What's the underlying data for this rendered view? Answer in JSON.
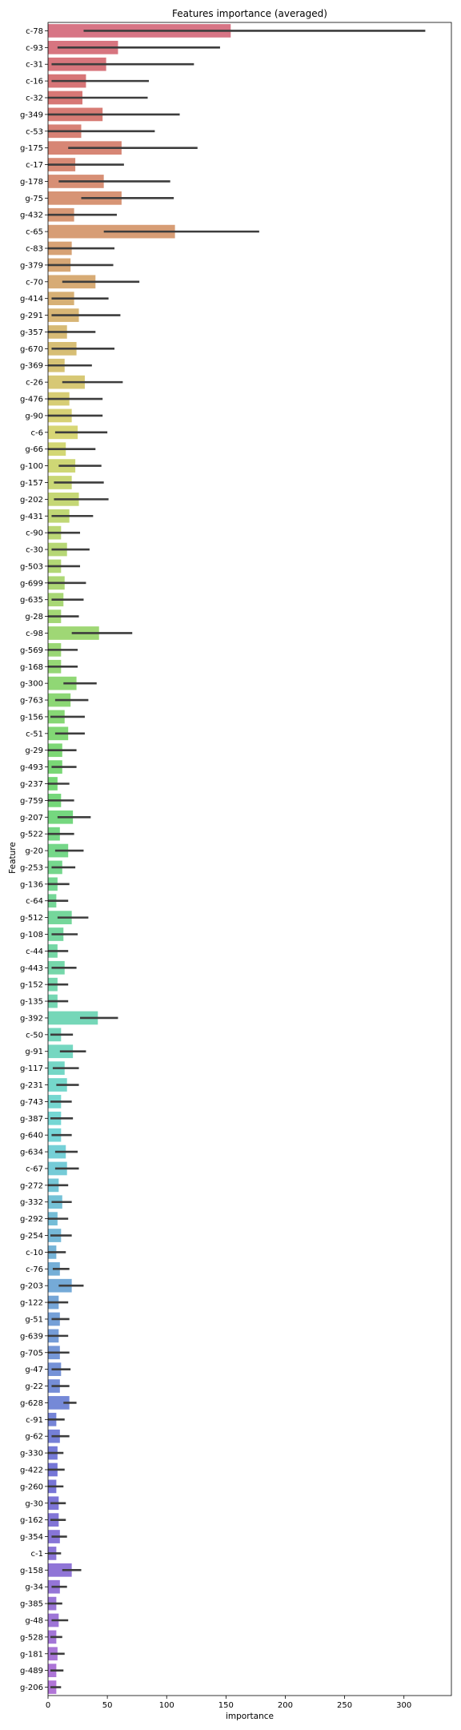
{
  "chart_data": {
    "type": "bar",
    "orientation": "horizontal",
    "title": "Features importance (averaged)",
    "xlabel": "importance",
    "ylabel": "Feature",
    "xlim": [
      0,
      340
    ],
    "xticks": [
      0,
      50,
      100,
      150,
      200,
      250,
      300
    ],
    "grid": false,
    "legend": "none",
    "error_bars": true,
    "categories": [
      "c-78",
      "c-93",
      "c-31",
      "c-16",
      "c-32",
      "g-349",
      "c-53",
      "g-175",
      "c-17",
      "g-178",
      "g-75",
      "g-432",
      "c-65",
      "c-83",
      "g-379",
      "c-70",
      "g-414",
      "g-291",
      "g-357",
      "g-670",
      "g-369",
      "c-26",
      "g-476",
      "g-90",
      "c-6",
      "g-66",
      "g-100",
      "g-157",
      "g-202",
      "g-431",
      "c-90",
      "c-30",
      "g-503",
      "g-699",
      "g-635",
      "g-28",
      "c-98",
      "g-569",
      "g-168",
      "g-300",
      "g-763",
      "g-156",
      "c-51",
      "g-29",
      "g-493",
      "g-237",
      "g-759",
      "g-207",
      "g-522",
      "g-20",
      "g-253",
      "g-136",
      "c-64",
      "g-512",
      "g-108",
      "c-44",
      "g-443",
      "g-152",
      "g-135",
      "g-392",
      "c-50",
      "g-91",
      "g-117",
      "g-231",
      "g-743",
      "g-387",
      "g-640",
      "g-634",
      "c-67",
      "g-272",
      "g-332",
      "g-292",
      "g-254",
      "c-10",
      "c-76",
      "g-203",
      "g-122",
      "g-51",
      "g-639",
      "g-705",
      "g-47",
      "g-22",
      "g-628",
      "c-91",
      "g-62",
      "g-330",
      "g-422",
      "g-260",
      "g-30",
      "g-162",
      "g-354",
      "c-1",
      "g-158",
      "g-34",
      "g-385",
      "g-48",
      "g-528",
      "g-181",
      "g-489",
      "g-206"
    ],
    "values": [
      154,
      59,
      49,
      32,
      29,
      46,
      28,
      62,
      23,
      47,
      62,
      22,
      107,
      20,
      19,
      40,
      22,
      26,
      16,
      24,
      14,
      31,
      18,
      20,
      25,
      15,
      23,
      20,
      26,
      18,
      11,
      16,
      11,
      14,
      13,
      11,
      43,
      11,
      11,
      24,
      19,
      14,
      17,
      12,
      12,
      8,
      11,
      21,
      10,
      17,
      12,
      8,
      7,
      20,
      13,
      8,
      14,
      8,
      8,
      42,
      11,
      21,
      14,
      16,
      11,
      11,
      11,
      15,
      16,
      9,
      12,
      8,
      11,
      7,
      10,
      20,
      9,
      10,
      9,
      10,
      11,
      10,
      18,
      7,
      10,
      8,
      8,
      7,
      9,
      9,
      10,
      7,
      20,
      10,
      7,
      9,
      7,
      8,
      7,
      7
    ],
    "error_low": [
      30,
      8,
      3,
      3,
      0,
      0,
      0,
      17,
      0,
      9,
      28,
      0,
      47,
      0,
      0,
      12,
      3,
      3,
      0,
      3,
      0,
      12,
      0,
      0,
      6,
      0,
      9,
      5,
      5,
      3,
      0,
      3,
      0,
      0,
      3,
      0,
      20,
      0,
      0,
      13,
      6,
      2,
      6,
      0,
      3,
      0,
      0,
      8,
      0,
      6,
      3,
      0,
      0,
      8,
      3,
      0,
      3,
      0,
      0,
      27,
      2,
      10,
      4,
      7,
      2,
      2,
      3,
      6,
      6,
      0,
      3,
      0,
      2,
      0,
      4,
      9,
      0,
      3,
      0,
      0,
      3,
      3,
      13,
      0,
      3,
      0,
      0,
      0,
      2,
      2,
      3,
      0,
      12,
      3,
      0,
      3,
      2,
      2,
      2,
      2
    ],
    "error_high": [
      318,
      145,
      123,
      85,
      84,
      111,
      90,
      126,
      64,
      103,
      106,
      58,
      178,
      56,
      55,
      77,
      51,
      61,
      40,
      56,
      37,
      63,
      46,
      46,
      50,
      40,
      45,
      47,
      51,
      38,
      27,
      35,
      27,
      32,
      30,
      26,
      71,
      25,
      25,
      41,
      34,
      31,
      31,
      24,
      24,
      18,
      22,
      36,
      22,
      30,
      23,
      18,
      17,
      34,
      25,
      17,
      24,
      17,
      17,
      59,
      21,
      32,
      26,
      26,
      20,
      21,
      20,
      25,
      26,
      17,
      20,
      17,
      20,
      15,
      18,
      30,
      17,
      18,
      17,
      18,
      19,
      18,
      24,
      14,
      18,
      13,
      14,
      13,
      15,
      15,
      16,
      11,
      28,
      16,
      12,
      17,
      12,
      14,
      13,
      11
    ]
  }
}
